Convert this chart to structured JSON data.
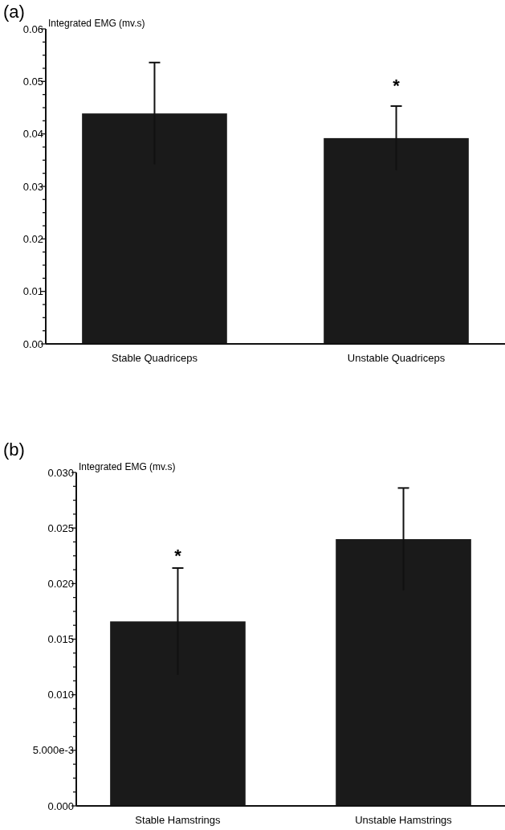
{
  "chart_data": [
    {
      "type": "bar",
      "title": "(a)",
      "ylabel": "Integrated EMG (mv.s)",
      "categories": [
        "Stable Quadriceps",
        "Unstable Quadriceps"
      ],
      "values": [
        0.0439,
        0.0392
      ],
      "errors": [
        0.0097,
        0.0061
      ],
      "color": "#1a1a1a",
      "ylim": [
        0,
        0.06
      ],
      "yticks": [
        {
          "value": 0,
          "label": "0.00"
        },
        {
          "value": 0.0025,
          "label": null
        },
        {
          "value": 0.005,
          "label": null
        },
        {
          "value": 0.0075,
          "label": null
        },
        0.01,
        {
          "value": 0.0125,
          "label": null
        },
        {
          "value": 0.015,
          "label": null
        },
        {
          "value": 0.0175,
          "label": null
        },
        0.02,
        {
          "value": 0.0225,
          "label": null
        },
        {
          "value": 0.025,
          "label": null
        },
        {
          "value": 0.0275,
          "label": null
        },
        0.03,
        {
          "value": 0.0325,
          "label": null
        },
        {
          "value": 0.035,
          "label": null
        },
        {
          "value": 0.0375,
          "label": null
        },
        0.04,
        {
          "value": 0.0425,
          "label": null
        },
        {
          "value": 0.045,
          "label": null
        },
        {
          "value": 0.0475,
          "label": null
        },
        0.05,
        {
          "value": 0.0525,
          "label": null
        },
        {
          "value": 0.055,
          "label": null
        },
        {
          "value": 0.0575,
          "label": null
        },
        0.06
      ],
      "annotations": [
        "*"
      ]
    },
    {
      "type": "bar",
      "title": "(b)",
      "ylabel": "Integrated EMG (mv.s)",
      "categories": [
        "Stable Hamstrings",
        "Unstable Hamstrings"
      ],
      "values": [
        0.0166,
        0.024
      ],
      "errors": [
        0.0048,
        0.0046
      ],
      "color": "#1a1a1a",
      "ylim": [
        0,
        0.03
      ],
      "yticks": [
        {
          "value": 0,
          "label": "0.000"
        },
        {
          "value": 0.00125,
          "label": null
        },
        {
          "value": 0.0025,
          "label": null
        },
        {
          "value": 0.00375,
          "label": null
        },
        {
          "value": 0.005,
          "label": "5.000e-3"
        },
        {
          "value": 0.00625,
          "label": null
        },
        {
          "value": 0.0075,
          "label": null
        },
        {
          "value": 0.00875,
          "label": null
        },
        {
          "value": 0.01,
          "label": "0.010"
        },
        {
          "value": 0.01125,
          "label": null
        },
        {
          "value": 0.0125,
          "label": null
        },
        {
          "value": 0.01375,
          "label": null
        },
        {
          "value": 0.015,
          "label": "0.015"
        },
        {
          "value": 0.01625,
          "label": null
        },
        {
          "value": 0.0175,
          "label": null
        },
        {
          "value": 0.01875,
          "label": null
        },
        {
          "value": 0.02,
          "label": "0.020"
        },
        {
          "value": 0.02125,
          "label": null
        },
        {
          "value": 0.0225,
          "label": null
        },
        {
          "value": 0.02375,
          "label": null
        },
        {
          "value": 0.025,
          "label": "0.025"
        },
        {
          "value": 0.02625,
          "label": null
        },
        {
          "value": 0.0275,
          "label": null
        },
        {
          "value": 0.02875,
          "label": null
        },
        {
          "value": 0.03,
          "label": "0.030"
        }
      ],
      "annotations": [
        "*"
      ]
    }
  ]
}
